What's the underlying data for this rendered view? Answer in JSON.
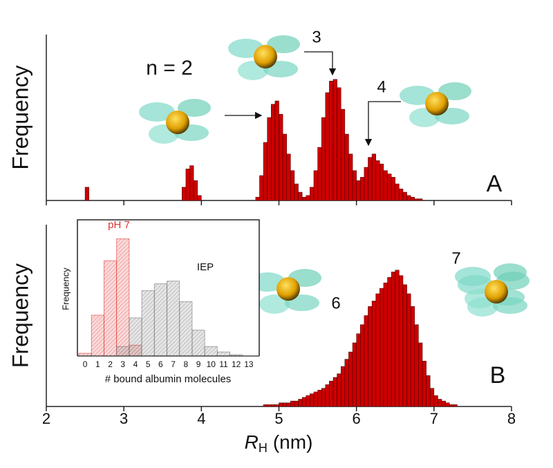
{
  "chart_data": [
    {
      "type": "histogram",
      "y_label": "Frequency",
      "panel_label": "A",
      "color": "#cc0000",
      "xlim": [
        2,
        8
      ],
      "ylim": [
        0,
        100
      ],
      "bins": [
        2.5,
        2.55,
        2.6,
        2.65,
        2.7,
        2.75,
        2.8,
        2.85,
        2.9,
        2.95,
        3.0,
        3.05,
        3.1,
        3.15,
        3.2,
        3.25,
        3.3,
        3.35,
        3.4,
        3.45,
        3.5,
        3.55,
        3.6,
        3.65,
        3.7,
        3.75,
        3.8,
        3.85,
        3.9,
        3.95,
        4.0,
        4.05,
        4.1,
        4.15,
        4.2,
        4.25,
        4.3,
        4.35,
        4.4,
        4.45,
        4.5,
        4.55,
        4.6,
        4.65,
        4.7,
        4.75,
        4.8,
        4.85,
        4.9,
        4.95,
        5.0,
        5.05,
        5.1,
        5.15,
        5.2,
        5.25,
        5.3,
        5.35,
        5.4,
        5.45,
        5.5,
        5.55,
        5.6,
        5.65,
        5.7,
        5.75,
        5.8,
        5.85,
        5.9,
        5.95,
        6.0,
        6.05,
        6.1,
        6.15,
        6.2,
        6.25,
        6.3,
        6.35,
        6.4,
        6.45,
        6.5,
        6.55,
        6.6,
        6.65,
        6.7,
        6.75,
        6.8,
        6.85
      ],
      "values": [
        8,
        0,
        0,
        0,
        0,
        0,
        0,
        0,
        0,
        0,
        0,
        0,
        0,
        0,
        0,
        0,
        0,
        0,
        0,
        0,
        0,
        0,
        0,
        0,
        0,
        8,
        19,
        21,
        12,
        3,
        0,
        0,
        0,
        0,
        0,
        0,
        0,
        0,
        0,
        0,
        0,
        0,
        0,
        0,
        2,
        15,
        35,
        50,
        58,
        60,
        52,
        40,
        28,
        18,
        10,
        5,
        2,
        3,
        8,
        18,
        32,
        50,
        65,
        72,
        73,
        68,
        55,
        40,
        28,
        18,
        12,
        14,
        20,
        26,
        28,
        24,
        22,
        18,
        16,
        14,
        10,
        7,
        5,
        3,
        2,
        1,
        1
      ],
      "annotations": [
        "n = 2",
        "3",
        "4"
      ]
    },
    {
      "type": "histogram",
      "y_label": "Frequency",
      "panel_label": "B",
      "color": "#cc0000",
      "xlim": [
        2,
        8
      ],
      "ylim": [
        0,
        100
      ],
      "xticks": [
        2,
        3,
        4,
        5,
        6,
        7,
        8
      ],
      "x_label": {
        "symbol": "R",
        "subscript": "H",
        "unit": "(nm)"
      },
      "bins": [
        4.8,
        4.85,
        4.9,
        4.95,
        5.0,
        5.05,
        5.1,
        5.15,
        5.2,
        5.25,
        5.3,
        5.35,
        5.4,
        5.45,
        5.5,
        5.55,
        5.6,
        5.65,
        5.7,
        5.75,
        5.8,
        5.85,
        5.9,
        5.95,
        6.0,
        6.05,
        6.1,
        6.15,
        6.2,
        6.25,
        6.3,
        6.35,
        6.4,
        6.45,
        6.5,
        6.55,
        6.6,
        6.65,
        6.7,
        6.75,
        6.8,
        6.85,
        6.9,
        6.95,
        7.0,
        7.05,
        7.1,
        7.15,
        7.2,
        7.25,
        7.3
      ],
      "values": [
        1,
        1,
        1,
        1,
        2,
        2,
        2,
        3,
        3,
        4,
        5,
        6,
        7,
        8,
        9,
        10,
        12,
        14,
        16,
        18,
        22,
        26,
        30,
        35,
        40,
        45,
        50,
        55,
        58,
        62,
        65,
        68,
        71,
        74,
        75,
        72,
        67,
        62,
        55,
        45,
        35,
        25,
        17,
        10,
        6,
        4,
        3,
        2,
        1,
        1
      ],
      "annotations": [
        "6",
        "7"
      ]
    },
    {
      "type": "bar",
      "y_label": "Frequency",
      "x_label": "# bound albumin molecules",
      "ylim": [
        0,
        100
      ],
      "categories": [
        "0",
        "1",
        "2",
        "3",
        "4",
        "5",
        "6",
        "7",
        "8",
        "9",
        "10",
        "11",
        "12",
        "13"
      ],
      "series": [
        {
          "name": "pH 7",
          "color": "#e03030",
          "values": [
            2,
            30,
            70,
            86,
            8,
            0,
            0,
            0,
            0,
            0,
            0,
            0,
            0,
            0
          ]
        },
        {
          "name": "IEP",
          "color": "#707070",
          "values": [
            0,
            0,
            0,
            7,
            28,
            48,
            53,
            55,
            40,
            19,
            7,
            3,
            1,
            0
          ]
        }
      ]
    }
  ]
}
